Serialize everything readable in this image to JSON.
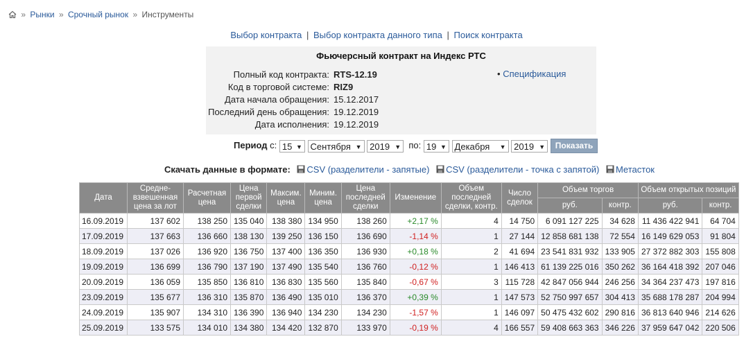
{
  "breadcrumb": {
    "home_icon": "home-icon",
    "sep": "»",
    "items": [
      "Рынки",
      "Срочный рынок",
      "Инструменты"
    ]
  },
  "topnav": {
    "links": [
      "Выбор контракта",
      "Выбор контракта данного типа",
      "Поиск контракта"
    ],
    "sep": "|"
  },
  "contract": {
    "title": "Фьючерсный контракт на Индекс РТС",
    "fields": [
      {
        "label": "Полный код контракта:",
        "value": "RTS-12.19",
        "bold": true
      },
      {
        "label": "Код в торговой системе:",
        "value": "RIZ9",
        "bold": true
      },
      {
        "label": "Дата начала обращения:",
        "value": "15.12.2017",
        "bold": false
      },
      {
        "label": "Последний день обращения:",
        "value": "19.12.2019",
        "bold": false
      },
      {
        "label": "Дата исполнения:",
        "value": "19.12.2019",
        "bold": false
      }
    ],
    "spec_link": "Спецификация"
  },
  "period": {
    "label": "Период",
    "from_label": "с:",
    "to_label": "по:",
    "from": {
      "day": "15",
      "month": "Сентября",
      "year": "2019"
    },
    "to": {
      "day": "19",
      "month": "Декабря",
      "year": "2019"
    },
    "button": "Показать"
  },
  "download": {
    "label": "Скачать данные в формате:",
    "links": [
      "CSV (разделители - запятые)",
      "CSV (разделители - точка с запятой)",
      "Метасток"
    ]
  },
  "table": {
    "headers": {
      "date": "Дата",
      "avg": "Средне-взвешенная цена за лот",
      "settle": "Расчетная цена",
      "first": "Цена первой сделки",
      "max": "Максим. цена",
      "min": "Миним. цена",
      "last": "Цена последней сделки",
      "change": "Изменение",
      "lastvol": "Объем последней сделки, контр.",
      "deals": "Число сделок",
      "volume": "Объем торгов",
      "oi": "Объем открытых позиций",
      "rub": "руб.",
      "contr": "контр."
    },
    "rows": [
      [
        "16.09.2019",
        "137 602",
        "138 250",
        "135 040",
        "138 380",
        "134 950",
        "138 260",
        "+2,17 %",
        "4",
        "14 750",
        "6 091 127 225",
        "34 628",
        "11 436 422 941",
        "64 704"
      ],
      [
        "17.09.2019",
        "137 663",
        "136 660",
        "138 130",
        "139 250",
        "136 150",
        "136 690",
        "-1,14 %",
        "1",
        "27 144",
        "12 858 681 138",
        "72 554",
        "16 149 629 053",
        "91 804"
      ],
      [
        "18.09.2019",
        "137 026",
        "136 920",
        "136 750",
        "137 400",
        "136 350",
        "136 930",
        "+0,18 %",
        "2",
        "41 694",
        "23 541 831 932",
        "133 905",
        "27 372 882 303",
        "155 808"
      ],
      [
        "19.09.2019",
        "136 699",
        "136 790",
        "137 190",
        "137 490",
        "135 540",
        "136 760",
        "-0,12 %",
        "1",
        "146 413",
        "61 139 225 016",
        "350 262",
        "36 164 418 392",
        "207 046"
      ],
      [
        "20.09.2019",
        "136 059",
        "135 850",
        "136 810",
        "136 830",
        "135 560",
        "135 840",
        "-0,67 %",
        "3",
        "115 728",
        "42 847 056 944",
        "246 256",
        "34 364 237 473",
        "197 816"
      ],
      [
        "23.09.2019",
        "135 677",
        "136 310",
        "135 870",
        "136 490",
        "135 010",
        "136 370",
        "+0,39 %",
        "1",
        "147 573",
        "52 750 997 657",
        "304 413",
        "35 688 178 287",
        "204 994"
      ],
      [
        "24.09.2019",
        "135 907",
        "134 310",
        "136 390",
        "136 940",
        "134 230",
        "134 230",
        "-1,57 %",
        "1",
        "146 097",
        "50 475 432 602",
        "290 816",
        "36 813 640 946",
        "214 626"
      ],
      [
        "25.09.2019",
        "133 575",
        "134 010",
        "134 380",
        "134 420",
        "132 870",
        "133 970",
        "-0,19 %",
        "4",
        "166 557",
        "59 408 663 363",
        "346 226",
        "37 959 647 042",
        "220 506"
      ]
    ]
  },
  "colors": {
    "link": "#2a5a9a",
    "positive": "#2a8a2a",
    "negative": "#d02020",
    "header_bg": "#8a8a8a",
    "button_bg": "#8fa4bb"
  }
}
